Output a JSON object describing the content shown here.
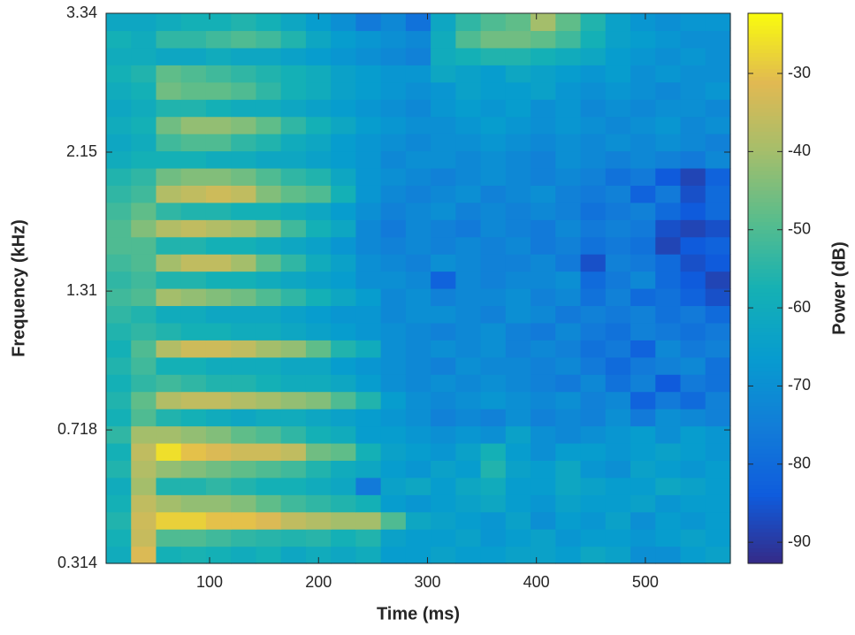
{
  "chart_data": {
    "type": "heatmap",
    "xlabel": "Time (ms)",
    "ylabel": "Frequency (kHz)",
    "colorbar_label": "Power (dB)",
    "xlim": [
      5,
      578
    ],
    "xticks": [
      100,
      200,
      300,
      400,
      500
    ],
    "ylim": [
      0.314,
      3.34
    ],
    "yticks": [
      0.314,
      0.718,
      1.31,
      2.15,
      3.34
    ],
    "yscale": "mel",
    "clim": [
      -92.7,
      -22.3
    ],
    "colorbar_ticks": [
      -30,
      -40,
      -50,
      -60,
      -70,
      -80,
      -90
    ],
    "colormap": "parula",
    "z": [
      [
        -60,
        -32,
        -58,
        -57,
        -58,
        -60,
        -58,
        -62,
        -60,
        -62,
        -60,
        -66,
        -66,
        -64,
        -66,
        -66,
        -64,
        -64,
        -66,
        -62,
        -64,
        -70,
        -70,
        -66,
        -64
      ],
      [
        -58,
        -35,
        -50,
        -50,
        -52,
        -54,
        -55,
        -56,
        -55,
        -58,
        -56,
        -64,
        -66,
        -66,
        -64,
        -68,
        -66,
        -64,
        -68,
        -66,
        -66,
        -68,
        -66,
        -64,
        -66
      ],
      [
        -56,
        -34,
        -28,
        -28,
        -30,
        -30,
        -32,
        -36,
        -38,
        -40,
        -40,
        -50,
        -62,
        -64,
        -66,
        -68,
        -64,
        -70,
        -66,
        -68,
        -64,
        -70,
        -66,
        -68,
        -66
      ],
      [
        -58,
        -36,
        -40,
        -42,
        -42,
        -44,
        -48,
        -52,
        -54,
        -56,
        -58,
        -66,
        -68,
        -66,
        -64,
        -62,
        -66,
        -68,
        -64,
        -66,
        -66,
        -64,
        -68,
        -66,
        -66
      ],
      [
        -60,
        -40,
        -56,
        -56,
        -54,
        -56,
        -58,
        -58,
        -60,
        -62,
        -76,
        -64,
        -62,
        -66,
        -62,
        -60,
        -66,
        -66,
        -62,
        -64,
        -66,
        -66,
        -62,
        -64,
        -66
      ],
      [
        -56,
        -38,
        -42,
        -44,
        -46,
        -48,
        -50,
        -52,
        -56,
        -60,
        -62,
        -66,
        -68,
        -64,
        -66,
        -56,
        -64,
        -66,
        -62,
        -68,
        -70,
        -64,
        -66,
        -68,
        -66
      ],
      [
        -58,
        -36,
        -26,
        -30,
        -32,
        -34,
        -34,
        -36,
        -46,
        -48,
        -58,
        -64,
        -66,
        -68,
        -64,
        -58,
        -66,
        -70,
        -66,
        -66,
        -68,
        -66,
        -64,
        -66,
        -68
      ],
      [
        -54,
        -40,
        -40,
        -42,
        -44,
        -48,
        -50,
        -54,
        -58,
        -60,
        -66,
        -66,
        -68,
        -70,
        -68,
        -70,
        -64,
        -70,
        -72,
        -70,
        -68,
        -66,
        -70,
        -66,
        -68
      ],
      [
        -58,
        -50,
        -56,
        -58,
        -60,
        -62,
        -60,
        -60,
        -62,
        -64,
        -66,
        -68,
        -70,
        -74,
        -72,
        -74,
        -70,
        -74,
        -72,
        -74,
        -70,
        -76,
        -70,
        -72,
        -74
      ],
      [
        -56,
        -48,
        -38,
        -36,
        -36,
        -38,
        -40,
        -42,
        -44,
        -50,
        -56,
        -66,
        -70,
        -72,
        -70,
        -68,
        -70,
        -72,
        -70,
        -74,
        -72,
        -82,
        -76,
        -80,
        -74
      ],
      [
        -58,
        -54,
        -52,
        -54,
        -56,
        -56,
        -58,
        -60,
        -60,
        -62,
        -66,
        -70,
        -72,
        -70,
        -72,
        -70,
        -72,
        -74,
        -76,
        -72,
        -78,
        -74,
        -84,
        -76,
        -78
      ],
      [
        -56,
        -52,
        -58,
        -58,
        -60,
        -60,
        -60,
        -62,
        -62,
        -66,
        -68,
        -70,
        -72,
        -74,
        -70,
        -72,
        -72,
        -74,
        -72,
        -76,
        -80,
        -76,
        -74,
        -72,
        -78
      ],
      [
        -58,
        -50,
        -38,
        -34,
        -34,
        -36,
        -40,
        -42,
        -48,
        -56,
        -60,
        -70,
        -72,
        -70,
        -72,
        -70,
        -74,
        -72,
        -74,
        -78,
        -76,
        -82,
        -72,
        -76,
        -74
      ],
      [
        -56,
        -54,
        -56,
        -58,
        -58,
        -60,
        -60,
        -62,
        -64,
        -66,
        -68,
        -70,
        -72,
        -74,
        -72,
        -70,
        -74,
        -76,
        -72,
        -76,
        -78,
        -74,
        -76,
        -78,
        -76
      ],
      [
        -54,
        -56,
        -60,
        -60,
        -62,
        -62,
        -62,
        -64,
        -66,
        -68,
        -68,
        -72,
        -70,
        -70,
        -72,
        -74,
        -70,
        -72,
        -76,
        -74,
        -76,
        -74,
        -78,
        -76,
        -80
      ],
      [
        -52,
        -50,
        -40,
        -42,
        -44,
        -46,
        -50,
        -54,
        -58,
        -62,
        -66,
        -72,
        -70,
        -74,
        -72,
        -72,
        -70,
        -74,
        -72,
        -78,
        -74,
        -80,
        -78,
        -82,
        -86
      ],
      [
        -54,
        -52,
        -56,
        -56,
        -58,
        -58,
        -60,
        -62,
        -64,
        -66,
        -70,
        -70,
        -72,
        -82,
        -72,
        -74,
        -72,
        -72,
        -70,
        -80,
        -76,
        -72,
        -80,
        -84,
        -88
      ],
      [
        -52,
        -50,
        -40,
        -36,
        -36,
        -40,
        -48,
        -54,
        -60,
        -64,
        -70,
        -72,
        -74,
        -70,
        -72,
        -74,
        -74,
        -72,
        -76,
        -86,
        -74,
        -76,
        -80,
        -86,
        -84
      ],
      [
        -50,
        -50,
        -56,
        -56,
        -58,
        -58,
        -60,
        -62,
        -64,
        -68,
        -72,
        -74,
        -72,
        -74,
        -72,
        -74,
        -72,
        -76,
        -74,
        -78,
        -76,
        -78,
        -88,
        -84,
        -82
      ],
      [
        -50,
        -44,
        -38,
        -36,
        -38,
        -40,
        -44,
        -52,
        -58,
        -62,
        -72,
        -76,
        -72,
        -74,
        -76,
        -72,
        -74,
        -76,
        -72,
        -76,
        -74,
        -76,
        -86,
        -88,
        -86
      ],
      [
        -52,
        -48,
        -54,
        -56,
        -56,
        -58,
        -58,
        -60,
        -62,
        -66,
        -70,
        -74,
        -72,
        -70,
        -74,
        -72,
        -74,
        -72,
        -74,
        -78,
        -76,
        -74,
        -80,
        -84,
        -80
      ],
      [
        -54,
        -52,
        -38,
        -36,
        -34,
        -36,
        -44,
        -48,
        -50,
        -58,
        -68,
        -72,
        -74,
        -72,
        -70,
        -74,
        -72,
        -70,
        -74,
        -76,
        -74,
        -82,
        -76,
        -86,
        -80
      ],
      [
        -56,
        -54,
        -46,
        -44,
        -44,
        -46,
        -50,
        -54,
        -56,
        -62,
        -68,
        -70,
        -72,
        -74,
        -72,
        -70,
        -72,
        -74,
        -72,
        -74,
        -78,
        -76,
        -84,
        -88,
        -82
      ],
      [
        -60,
        -58,
        -58,
        -58,
        -60,
        -60,
        -62,
        -62,
        -64,
        -66,
        -68,
        -72,
        -70,
        -70,
        -72,
        -70,
        -72,
        -74,
        -70,
        -72,
        -74,
        -72,
        -74,
        -76,
        -72
      ],
      [
        -62,
        -60,
        -52,
        -50,
        -50,
        -54,
        -56,
        -60,
        -62,
        -66,
        -68,
        -70,
        -72,
        -70,
        -70,
        -68,
        -70,
        -72,
        -70,
        -72,
        -70,
        -72,
        -70,
        -72,
        -74
      ],
      [
        -60,
        -58,
        -46,
        -42,
        -42,
        -44,
        -48,
        -54,
        -58,
        -62,
        -66,
        -68,
        -70,
        -70,
        -68,
        -66,
        -68,
        -70,
        -68,
        -70,
        -72,
        -70,
        -68,
        -72,
        -70
      ],
      [
        -62,
        -60,
        -56,
        -56,
        -58,
        -60,
        -60,
        -62,
        -64,
        -66,
        -68,
        -70,
        -72,
        -68,
        -66,
        -68,
        -66,
        -70,
        -68,
        -72,
        -70,
        -72,
        -70,
        -70,
        -72
      ],
      [
        -60,
        -58,
        -46,
        -48,
        -48,
        -50,
        -54,
        -58,
        -60,
        -64,
        -66,
        -68,
        -70,
        -68,
        -64,
        -66,
        -66,
        -64,
        -68,
        -70,
        -68,
        -70,
        -72,
        -70,
        -68
      ],
      [
        -58,
        -56,
        -48,
        -50,
        -52,
        -54,
        -56,
        -58,
        -60,
        -64,
        -66,
        -68,
        -68,
        -62,
        -64,
        -66,
        -62,
        -64,
        -66,
        -68,
        -66,
        -70,
        -68,
        -70,
        -70
      ],
      [
        -60,
        -60,
        -62,
        -62,
        -60,
        -62,
        -62,
        -64,
        -66,
        -68,
        -70,
        -72,
        -74,
        -60,
        -58,
        -56,
        -56,
        -58,
        -60,
        -62,
        -66,
        -68,
        -70,
        -68,
        -70
      ],
      [
        -58,
        -60,
        -54,
        -54,
        -52,
        -50,
        -52,
        -56,
        -62,
        -66,
        -68,
        -70,
        -72,
        -60,
        -50,
        -46,
        -46,
        -48,
        -52,
        -58,
        -64,
        -66,
        -68,
        -70,
        -70
      ],
      [
        -62,
        -62,
        -60,
        -58,
        -58,
        -56,
        -58,
        -62,
        -66,
        -70,
        -76,
        -72,
        -78,
        -62,
        -54,
        -50,
        -48,
        -40,
        -48,
        -56,
        -64,
        -68,
        -70,
        -68,
        -68
      ]
    ]
  }
}
